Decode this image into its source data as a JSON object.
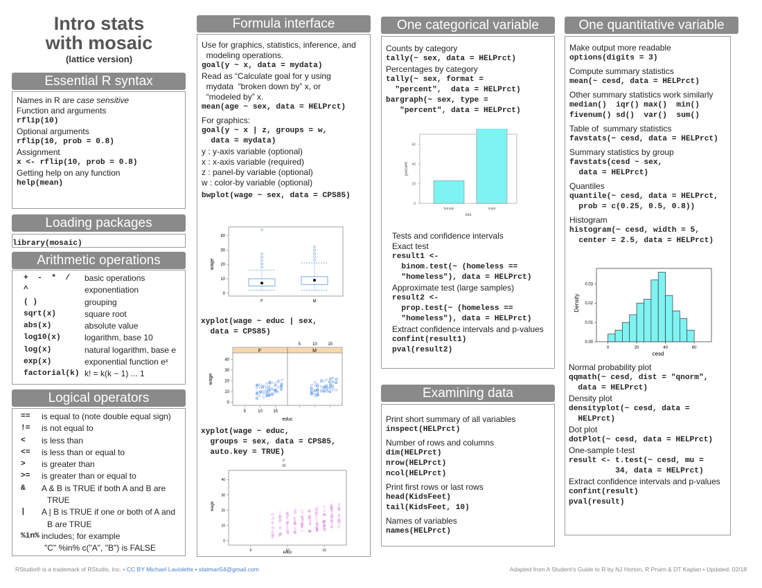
{
  "title": {
    "line1": "Intro stats",
    "line2": "with mosaic",
    "line3": "(lattice version)"
  },
  "essential": {
    "header": "Essential R syntax",
    "lines": [
      {
        "t": "Names in R are ",
        "i": "case sensitive"
      },
      {
        "t": "Function and arguments"
      },
      {
        "c": "rflip(10)"
      },
      {
        "t": "Optional arguments"
      },
      {
        "c": "rflip(10, prob = 0.8)"
      },
      {
        "t": "Assignment"
      },
      {
        "c": "x <- rflip(10, prob = 0.8)"
      },
      {
        "t": "Getting help on any function"
      },
      {
        "c": "help(mean)"
      }
    ]
  },
  "loading": {
    "header": "Loading packages",
    "code": "library(mosaic)"
  },
  "arith": {
    "header": "Arithmetic operations",
    "rows": [
      {
        "k": "+  -  *  /",
        "v": "basic operations"
      },
      {
        "k": "^",
        "v": "exponentiation"
      },
      {
        "k": "( )",
        "v": "grouping"
      },
      {
        "k": "sqrt(x)",
        "v": "square root"
      },
      {
        "k": "abs(x)",
        "v": "absolute value"
      },
      {
        "k": "log10(x)",
        "v": "logarithm, base 10"
      },
      {
        "k": "log(x)",
        "v": "natural logarithm, base e"
      },
      {
        "k": "exp(x)",
        "v": "exponential function eˣ"
      },
      {
        "k": "factorial(k)",
        "v": "k! = k(k − 1) ... 1"
      }
    ]
  },
  "logical": {
    "header": "Logical operators",
    "rows": [
      {
        "k": "==",
        "v": "is equal to (note double equal sign)"
      },
      {
        "k": "!=",
        "v": "is not equal to"
      },
      {
        "k": "<",
        "v": "is less than"
      },
      {
        "k": "<=",
        "v": "is less than or equal to"
      },
      {
        "k": ">",
        "v": "is greater than"
      },
      {
        "k": ">=",
        "v": "is greater than or equal to"
      },
      {
        "k": "&",
        "v": "A & B is TRUE if both A and B are"
      },
      {
        "k": "",
        "v": "TRUE"
      },
      {
        "k": "|",
        "v": "A | B is TRUE if one or both of A and"
      },
      {
        "k": "",
        "v": "B are TRUE"
      },
      {
        "k": "%in%",
        "v": "includes; for example"
      },
      {
        "k": "",
        "v": "\"C\" %in% c(\"A\", \"B\") is FALSE"
      }
    ]
  },
  "formula": {
    "header": "Formula interface",
    "lines": [
      {
        "t": "Use for graphics, statistics, inference, and"
      },
      {
        "t": "  modeling operations."
      },
      {
        "c": "goal(y ~ x, data = mydata)"
      },
      {
        "t": "Read as “Calculate goal for y using"
      },
      {
        "t": "  mydata  “broken down by” x, or"
      },
      {
        "t": "  “modeled by” x."
      },
      {
        "c": "mean(age ~ sex, data = HELPrct)"
      },
      {
        "gap": true
      },
      {
        "t": "For graphics:"
      },
      {
        "c": "goal(y ~ x | z, groups = w,"
      },
      {
        "c": "  data = mydata)"
      },
      {
        "t": "y : y-axis variable (optional)"
      },
      {
        "t": "x : x-axis variable (required)"
      },
      {
        "t": "z : panel-by variable (optional)"
      },
      {
        "t": "w : color-by variable (optional)"
      },
      {
        "gap": true
      },
      {
        "c": "bwplot(wage ~ sex, data = CPS85)"
      }
    ],
    "code2": [
      "xyplot(wage ~ educ | sex,",
      "  data = CPS85)"
    ],
    "code3": [
      "xyplot(wage ~ educ,",
      "  groups = sex, data = CPS85,",
      "  auto.key = TRUE)"
    ]
  },
  "categorical": {
    "header": "One categorical variable",
    "lines": [
      {
        "t": "Counts by category"
      },
      {
        "c": "tally(~ sex, data = HELPrct)"
      },
      {
        "t": "Percentages by category"
      },
      {
        "c": "tally(~ sex, format ="
      },
      {
        "c": "  \"percent\",  data = HELPrct)"
      },
      {
        "c": "bargraph(~ sex, type ="
      },
      {
        "c": "   \"percent\", data = HELPrct)"
      }
    ],
    "lines2": [
      {
        "t": "Tests and confidence intervals"
      },
      {
        "t": "Exact test"
      },
      {
        "c": "result1 <-"
      },
      {
        "c": "  binom.test(~ (homeless =="
      },
      {
        "c": "  \"homeless\"), data = HELPrct)"
      },
      {
        "t": "Approximate test (large samples)"
      },
      {
        "c": "result2 <-"
      },
      {
        "c": "  prop.test(~ (homeless =="
      },
      {
        "c": "  \"homeless\"), data = HELPrct)"
      },
      {
        "t": "Extract confidence intervals and p-values"
      },
      {
        "c": "confint(result1)"
      },
      {
        "c": "pval(result2)"
      }
    ]
  },
  "examining": {
    "header": "Examining data",
    "lines": [
      {
        "t": "Print short summary of all variables"
      },
      {
        "c": "inspect(HELPrct)"
      },
      {
        "gap": true
      },
      {
        "t": "Number of rows and columns"
      },
      {
        "c": "dim(HELPrct)"
      },
      {
        "c": "nrow(HELPrct)"
      },
      {
        "c": "ncol(HELPrct)"
      },
      {
        "gap": true
      },
      {
        "t": "Print first rows or last rows"
      },
      {
        "c": "head(KidsFeet)"
      },
      {
        "c": "tail(KidsFeet, 10)"
      },
      {
        "gap": true
      },
      {
        "t": "Names of variables"
      },
      {
        "c": "names(HELPrct)"
      }
    ]
  },
  "quantitative": {
    "header": "One quantitative variable",
    "lines": [
      {
        "t": "Make output more readable"
      },
      {
        "c": "options(digits = 3)"
      },
      {
        "gap": true
      },
      {
        "t": "Compute summary statistics"
      },
      {
        "c": "mean(~ cesd, data = HELPrct)"
      },
      {
        "gap": true
      },
      {
        "t": "Other summary statistics work similarly"
      },
      {
        "c": "median()  iqr() max()  min()"
      },
      {
        "c": "fivenum() sd()  var()  sum()"
      },
      {
        "gap": true
      },
      {
        "t": "Table of  summary statistics"
      },
      {
        "c": "favstats(~ cesd, data = HELPrct)"
      },
      {
        "gap": true
      },
      {
        "t": "Summary statistics by group"
      },
      {
        "c": "favstats(cesd ~ sex,"
      },
      {
        "c": "  data = HELPrct)"
      },
      {
        "gap": true
      },
      {
        "t": "Quantiles"
      },
      {
        "c": "quantile(~ cesd, data = HELPrct,"
      },
      {
        "c": "  prob = c(0.25, 0.5, 0.8))"
      },
      {
        "gap": true
      },
      {
        "t": "Histogram"
      },
      {
        "c": "histogram(~ cesd, width = 5,"
      },
      {
        "c": "  center = 2.5, data = HELPrct)"
      }
    ],
    "lines2": [
      {
        "t": "Normal probability plot"
      },
      {
        "c": "qqmath(~ cesd, dist = \"qnorm\","
      },
      {
        "c": "  data = HELPrct)"
      },
      {
        "t": "Density plot"
      },
      {
        "c": "densityplot(~ cesd, data ="
      },
      {
        "c": "  HELPrct)"
      },
      {
        "t": "Dot plot"
      },
      {
        "c": "dotPlot(~ cesd, data = HELPrct)"
      },
      {
        "t": "One-sample t-test"
      },
      {
        "c": "result <- t.test(~ cesd, mu ="
      },
      {
        "c": "          34, data = HELPrct)"
      },
      {
        "t": "Extract confidence intervals and p-values"
      },
      {
        "c": "confint(result)"
      },
      {
        "c": "pval(result)"
      }
    ]
  },
  "footer": {
    "left": "RStudio® is a trademark of RStudio, Inc.  •  ",
    "left_link": "CC BY Michael Laviolette • statman54@gmail.com",
    "right": "Adapted from  A Student's Guide to R by NJ Horton, R Pruim & DT Kaplan •  Updated: 02/18"
  },
  "chart_data": [
    {
      "type": "bar",
      "categories": [
        "female",
        "male"
      ],
      "values": [
        23,
        77
      ],
      "ylabel": "percent",
      "xlabel": "sex",
      "yticks": [
        0,
        20,
        40,
        60
      ],
      "color": "#7ff3f3"
    },
    {
      "type": "bar",
      "title": "",
      "xlabel": "cesd",
      "ylabel": "Density",
      "x": [
        2.5,
        7.5,
        12.5,
        17.5,
        22.5,
        27.5,
        32.5,
        37.5,
        42.5,
        47.5,
        52.5,
        57.5
      ],
      "values": [
        0.004,
        0.006,
        0.01,
        0.014,
        0.02,
        0.022,
        0.032,
        0.036,
        0.024,
        0.016,
        0.012,
        0.006
      ],
      "yticks": [
        0.0,
        0.01,
        0.02,
        0.03
      ],
      "xticks": [
        0,
        20,
        40,
        60
      ],
      "color": "#7ff3f3"
    },
    {
      "type": "box",
      "categories": [
        "F",
        "M"
      ],
      "ylabel": "wage",
      "yticks": [
        0,
        10,
        20,
        30,
        40
      ],
      "boxes": [
        {
          "q1": 5,
          "med": 7,
          "q3": 10,
          "lo": 2,
          "hi": 16,
          "mean": 7
        },
        {
          "q1": 6,
          "med": 9,
          "q3": 11.5,
          "lo": 2,
          "hi": 21,
          "mean": 9
        }
      ]
    },
    {
      "type": "scatter",
      "panels": [
        "F",
        "M"
      ],
      "xlabel": "educ",
      "ylabel": "wage",
      "xticks": [
        5,
        10,
        15
      ],
      "yticks": [
        0,
        10,
        20,
        30,
        40
      ]
    },
    {
      "type": "scatter",
      "xlabel": "educ",
      "ylabel": "wage",
      "xticks": [
        5,
        10,
        15
      ],
      "yticks": [
        0,
        10,
        20,
        30,
        40
      ],
      "legend": [
        "F",
        "M"
      ]
    }
  ]
}
